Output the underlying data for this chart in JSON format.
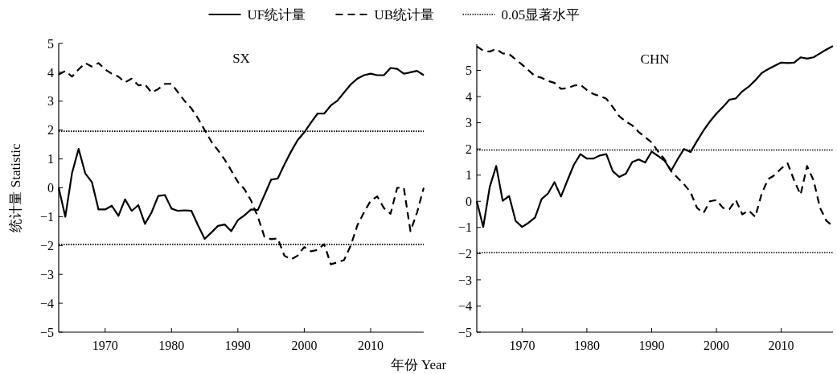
{
  "chart_data": [
    {
      "type": "line",
      "title": "SX",
      "xlabel": "年份 Year",
      "ylabel": "统计量 Statistic",
      "x": [
        1963,
        1964,
        1965,
        1966,
        1967,
        1968,
        1969,
        1970,
        1971,
        1972,
        1973,
        1974,
        1975,
        1976,
        1977,
        1978,
        1979,
        1980,
        1981,
        1982,
        1983,
        1984,
        1985,
        1986,
        1987,
        1988,
        1989,
        1990,
        1991,
        1992,
        1993,
        1994,
        1995,
        1996,
        1997,
        1998,
        1999,
        2000,
        2001,
        2002,
        2003,
        2004,
        2005,
        2006,
        2007,
        2008,
        2009,
        2010,
        2011,
        2012,
        2013,
        2014,
        2015,
        2016,
        2017,
        2018
      ],
      "xlim": [
        1963,
        2018
      ],
      "xticks": [
        1970,
        1980,
        1990,
        2000,
        2010
      ],
      "ylim": [
        -5,
        5
      ],
      "yticks": [
        -5,
        -4,
        -3,
        -2,
        -1,
        0,
        1,
        2,
        3,
        4,
        5
      ],
      "legend": "top",
      "grid": false,
      "marker": "none",
      "series": [
        {
          "name": "UF统计量",
          "color": "#000000",
          "line_style": "solid",
          "values": [
            0,
            -1.0,
            0.5,
            1.35,
            0.5,
            0.2,
            -0.75,
            -0.75,
            -0.62,
            -0.97,
            -0.4,
            -0.8,
            -0.6,
            -1.25,
            -0.85,
            -0.28,
            -0.25,
            -0.72,
            -0.8,
            -0.78,
            -0.8,
            -1.3,
            -1.77,
            -1.55,
            -1.32,
            -1.27,
            -1.5,
            -1.12,
            -0.95,
            -0.75,
            -0.77,
            -0.25,
            0.28,
            0.32,
            0.8,
            1.25,
            1.65,
            1.92,
            2.25,
            2.57,
            2.57,
            2.85,
            3.02,
            3.3,
            3.58,
            3.78,
            3.9,
            3.95,
            3.9,
            3.9,
            4.15,
            4.12,
            3.95,
            4.0,
            4.05,
            3.9
          ]
        },
        {
          "name": "UB统计量",
          "color": "#000000",
          "line_style": "dashed",
          "values": [
            3.92,
            4.05,
            3.85,
            4.1,
            4.32,
            4.2,
            4.32,
            4.1,
            3.95,
            3.85,
            3.65,
            3.78,
            3.55,
            3.58,
            3.3,
            3.42,
            3.6,
            3.6,
            3.3,
            3.0,
            2.75,
            2.4,
            2.0,
            1.6,
            1.3,
            0.98,
            0.6,
            0.2,
            -0.05,
            -0.45,
            -1.0,
            -1.7,
            -1.78,
            -1.75,
            -2.35,
            -2.48,
            -2.35,
            -2.05,
            -2.2,
            -2.15,
            -1.95,
            -2.65,
            -2.58,
            -2.5,
            -2.0,
            -1.3,
            -0.85,
            -0.45,
            -0.3,
            -0.7,
            -0.9,
            0.0,
            0.0,
            -1.5,
            -0.85,
            0.0
          ]
        }
      ],
      "ref_lines": [
        {
          "axis": "y",
          "value": 1.96,
          "label": "0.05显著水平",
          "color": "#000000",
          "line_style": "dotted"
        },
        {
          "axis": "y",
          "value": -1.96,
          "color": "#000000",
          "line_style": "dotted"
        }
      ]
    },
    {
      "type": "line",
      "title": "CHN",
      "x": [
        1963,
        1964,
        1965,
        1966,
        1967,
        1968,
        1969,
        1970,
        1971,
        1972,
        1973,
        1974,
        1975,
        1976,
        1977,
        1978,
        1979,
        1980,
        1981,
        1982,
        1983,
        1984,
        1985,
        1986,
        1987,
        1988,
        1989,
        1990,
        1991,
        1992,
        1993,
        1994,
        1995,
        1996,
        1997,
        1998,
        1999,
        2000,
        2001,
        2002,
        2003,
        2004,
        2005,
        2006,
        2007,
        2008,
        2009,
        2010,
        2011,
        2012,
        2013,
        2014,
        2015,
        2016,
        2017,
        2018
      ],
      "xlim": [
        1963,
        2018
      ],
      "xticks": [
        1970,
        1980,
        1990,
        2000,
        2010
      ],
      "ylim": [
        -5,
        6
      ],
      "yticks": [
        -5,
        -4,
        -3,
        -2,
        -1,
        0,
        1,
        2,
        3,
        4,
        5
      ],
      "grid": false,
      "marker": "none",
      "series": [
        {
          "color": "#000000",
          "line_style": "solid",
          "values": [
            0,
            -0.98,
            0.55,
            1.35,
            0.02,
            0.2,
            -0.75,
            -0.98,
            -0.82,
            -0.62,
            0.08,
            0.3,
            0.73,
            0.18,
            0.8,
            1.4,
            1.8,
            1.63,
            1.63,
            1.75,
            1.8,
            1.15,
            0.93,
            1.05,
            1.5,
            1.6,
            1.48,
            1.9,
            1.73,
            1.55,
            1.17,
            1.6,
            2.0,
            1.88,
            2.3,
            2.7,
            3.05,
            3.35,
            3.6,
            3.88,
            3.93,
            4.2,
            4.38,
            4.62,
            4.9,
            5.05,
            5.18,
            5.3,
            5.28,
            5.3,
            5.5,
            5.45,
            5.5,
            5.65,
            5.8,
            5.93
          ]
        },
        {
          "color": "#000000",
          "line_style": "dashed",
          "values": [
            5.92,
            5.75,
            5.72,
            5.82,
            5.65,
            5.62,
            5.42,
            5.22,
            5.0,
            4.78,
            4.72,
            4.6,
            4.52,
            4.3,
            4.32,
            4.42,
            4.45,
            4.25,
            4.1,
            4.02,
            3.92,
            3.6,
            3.25,
            3.05,
            2.9,
            2.65,
            2.45,
            2.25,
            1.9,
            1.6,
            1.15,
            0.9,
            0.65,
            0.35,
            -0.25,
            -0.45,
            0.0,
            0.05,
            -0.25,
            -0.3,
            0.05,
            -0.5,
            -0.35,
            -0.6,
            0.3,
            0.85,
            1.0,
            1.25,
            1.45,
            0.8,
            0.25,
            1.35,
            0.8,
            -0.25,
            -0.75,
            -0.95
          ]
        }
      ],
      "ref_lines": [
        {
          "axis": "y",
          "value": 1.96,
          "color": "#000000",
          "line_style": "dotted"
        },
        {
          "axis": "y",
          "value": -1.96,
          "color": "#000000",
          "line_style": "dotted"
        }
      ]
    }
  ]
}
